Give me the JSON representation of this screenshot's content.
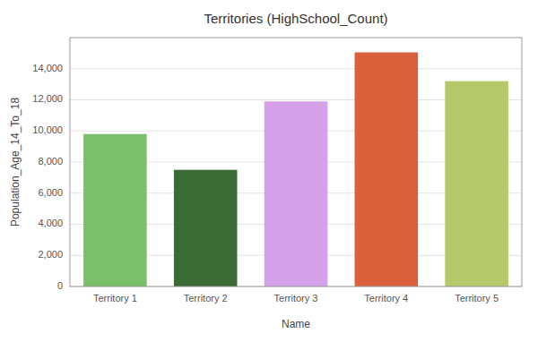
{
  "chart_data": {
    "type": "bar",
    "title": "Territories (HighSchool_Count)",
    "xlabel": "Name",
    "ylabel": "Population_Age_14_To_18",
    "categories": [
      "Territory 1",
      "Territory 2",
      "Territory 3",
      "Territory 4",
      "Territory 5"
    ],
    "values": [
      9800,
      7500,
      11900,
      15050,
      13200
    ],
    "colors": [
      "#7BBF6A",
      "#3A6B35",
      "#D4A0E8",
      "#D9603B",
      "#B5C96A"
    ],
    "ylim": [
      0,
      16000
    ],
    "yticks": [
      0,
      {
        "value": 2000,
        "label": "2,000"
      },
      {
        "value": 4000,
        "label": "4,000"
      },
      {
        "value": 6000,
        "label": "6,000"
      },
      {
        "value": 8000,
        "label": "8,000"
      },
      {
        "value": 10000,
        "label": "10,000"
      },
      {
        "value": 12000,
        "label": "12,000"
      },
      {
        "value": 14000,
        "label": "14,000"
      }
    ],
    "grid": true
  }
}
